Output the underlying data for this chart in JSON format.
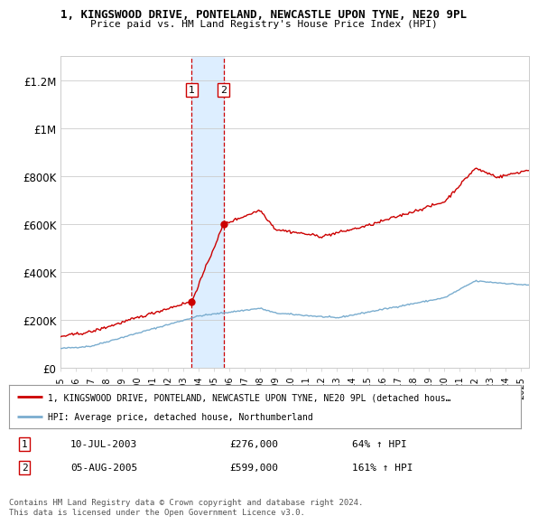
{
  "title1": "1, KINGSWOOD DRIVE, PONTELAND, NEWCASTLE UPON TYNE, NE20 9PL",
  "title2": "Price paid vs. HM Land Registry's House Price Index (HPI)",
  "ylim": [
    0,
    1300000
  ],
  "yticks": [
    0,
    200000,
    400000,
    600000,
    800000,
    1000000,
    1200000
  ],
  "ytick_labels": [
    "£0",
    "£200K",
    "£400K",
    "£600K",
    "£800K",
    "£1M",
    "£1.2M"
  ],
  "sale1_year": 2003.54,
  "sale1_price": 276000,
  "sale2_year": 2005.62,
  "sale2_price": 599000,
  "legend_line1": "1, KINGSWOOD DRIVE, PONTELAND, NEWCASTLE UPON TYNE, NE20 9PL (detached hous…",
  "legend_line2": "HPI: Average price, detached house, Northumberland",
  "footer": "Contains HM Land Registry data © Crown copyright and database right 2024.\nThis data is licensed under the Open Government Licence v3.0.",
  "red_color": "#cc0000",
  "blue_color": "#7aadcf",
  "shade_color": "#ddeeff",
  "grid_color": "#cccccc"
}
